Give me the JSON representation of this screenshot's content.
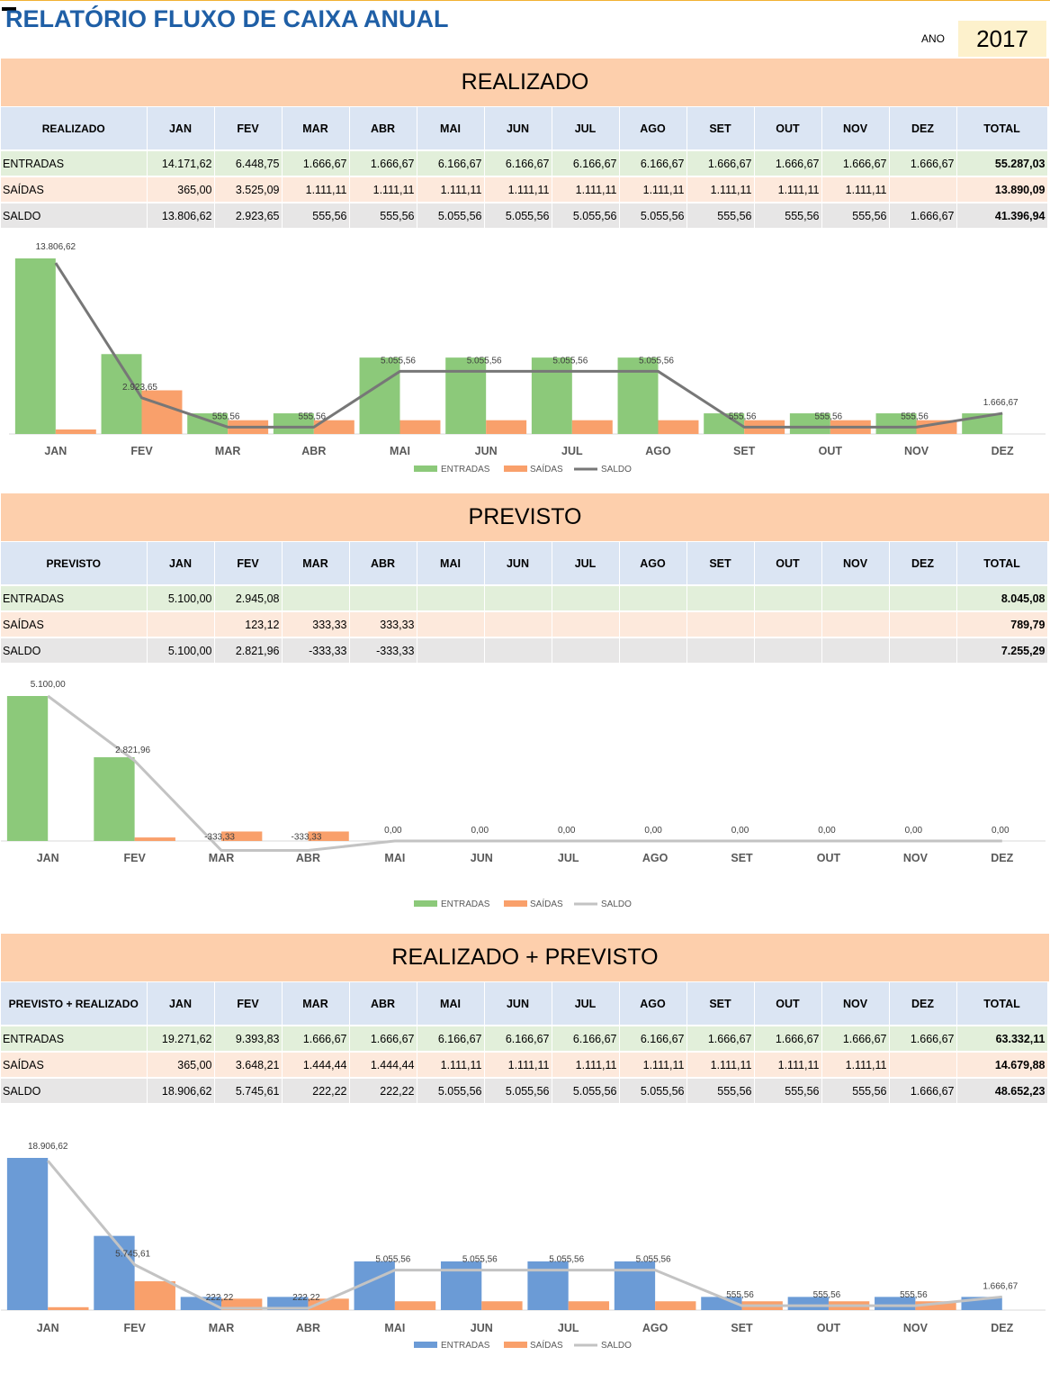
{
  "header": {
    "title": "RELATÓRIO FLUXO DE CAIXA ANUAL",
    "ano_label": "ANO",
    "ano_value": "2017"
  },
  "months": [
    "JAN",
    "FEV",
    "MAR",
    "ABR",
    "MAI",
    "JUN",
    "JUL",
    "AGO",
    "SET",
    "OUT",
    "NOV",
    "DEZ"
  ],
  "total_label": "TOTAL",
  "row_labels": {
    "in": "ENTRADAS",
    "out": "SAÍDAS",
    "bal": "SALDO"
  },
  "colors": {
    "green": "#8cc97a",
    "orange": "#f9a06b",
    "blue": "#6b9bd6",
    "line_dark": "#777777",
    "line_light": "#c3c3c3",
    "band": "#fdcfac"
  },
  "realizado": {
    "band": "REALIZADO",
    "header_label": "REALIZADO",
    "entradas": [
      "14.171,62",
      "6.448,75",
      "1.666,67",
      "1.666,67",
      "6.166,67",
      "6.166,67",
      "6.166,67",
      "6.166,67",
      "1.666,67",
      "1.666,67",
      "1.666,67",
      "1.666,67",
      "55.287,03"
    ],
    "saidas": [
      "365,00",
      "3.525,09",
      "1.111,11",
      "1.111,11",
      "1.111,11",
      "1.111,11",
      "1.111,11",
      "1.111,11",
      "1.111,11",
      "1.111,11",
      "1.111,11",
      "",
      "13.890,09"
    ],
    "saldo": [
      "13.806,62",
      "2.923,65",
      "555,56",
      "555,56",
      "5.055,56",
      "5.055,56",
      "5.055,56",
      "5.055,56",
      "555,56",
      "555,56",
      "555,56",
      "1.666,67",
      "41.396,94"
    ]
  },
  "previsto": {
    "band": "PREVISTO",
    "header_label": "PREVISTO",
    "entradas": [
      "5.100,00",
      "2.945,08",
      "",
      "",
      "",
      "",
      "",
      "",
      "",
      "",
      "",
      "",
      "8.045,08"
    ],
    "saidas": [
      "",
      "123,12",
      "333,33",
      "333,33",
      "",
      "",
      "",
      "",
      "",
      "",
      "",
      "",
      "789,79"
    ],
    "saldo": [
      "5.100,00",
      "2.821,96",
      "-333,33",
      "-333,33",
      "",
      "",
      "",
      "",
      "",
      "",
      "",
      "",
      "7.255,29"
    ]
  },
  "combinado": {
    "band": "REALIZADO + PREVISTO",
    "header_label": "PREVISTO + REALIZADO",
    "entradas": [
      "19.271,62",
      "9.393,83",
      "1.666,67",
      "1.666,67",
      "6.166,67",
      "6.166,67",
      "6.166,67",
      "6.166,67",
      "1.666,67",
      "1.666,67",
      "1.666,67",
      "1.666,67",
      "63.332,11"
    ],
    "saidas": [
      "365,00",
      "3.648,21",
      "1.444,44",
      "1.444,44",
      "1.111,11",
      "1.111,11",
      "1.111,11",
      "1.111,11",
      "1.111,11",
      "1.111,11",
      "1.111,11",
      "",
      "14.679,88"
    ],
    "saldo": [
      "18.906,62",
      "5.745,61",
      "222,22",
      "222,22",
      "5.055,56",
      "5.055,56",
      "5.055,56",
      "5.055,56",
      "555,56",
      "555,56",
      "555,56",
      "1.666,67",
      "48.652,23"
    ]
  },
  "chart_data": [
    {
      "type": "bar",
      "categories": [
        "JAN",
        "FEV",
        "MAR",
        "ABR",
        "MAI",
        "JUN",
        "JUL",
        "AGO",
        "SET",
        "OUT",
        "NOV",
        "DEZ"
      ],
      "series": [
        {
          "name": "ENTRADAS",
          "kind": "bar",
          "values": [
            14171.62,
            6448.75,
            1666.67,
            1666.67,
            6166.67,
            6166.67,
            6166.67,
            6166.67,
            1666.67,
            1666.67,
            1666.67,
            1666.67
          ]
        },
        {
          "name": "SAÍDAS",
          "kind": "bar",
          "values": [
            365,
            3525.09,
            1111.11,
            1111.11,
            1111.11,
            1111.11,
            1111.11,
            1111.11,
            1111.11,
            1111.11,
            1111.11,
            0
          ]
        },
        {
          "name": "SALDO",
          "kind": "line",
          "values": [
            13806.62,
            2923.65,
            555.56,
            555.56,
            5055.56,
            5055.56,
            5055.56,
            5055.56,
            555.56,
            555.56,
            555.56,
            1666.67
          ]
        }
      ],
      "data_labels": [
        "13.806,62",
        "2.923,65",
        "555,56",
        "555,56",
        "5.055,56",
        "5.055,56",
        "5.055,56",
        "5.055,56",
        "555,56",
        "555,56",
        "555,56",
        "1.666,67"
      ],
      "legend": "bottom",
      "line_color": "#777777",
      "entradas_color": "#8cc97a"
    },
    {
      "type": "bar",
      "categories": [
        "JAN",
        "FEV",
        "MAR",
        "ABR",
        "MAI",
        "JUN",
        "JUL",
        "AGO",
        "SET",
        "OUT",
        "NOV",
        "DEZ"
      ],
      "series": [
        {
          "name": "ENTRADAS",
          "kind": "bar",
          "values": [
            5100,
            2945.08,
            0,
            0,
            0,
            0,
            0,
            0,
            0,
            0,
            0,
            0
          ]
        },
        {
          "name": "SAÍDAS",
          "kind": "bar",
          "values": [
            0,
            123.12,
            333.33,
            333.33,
            0,
            0,
            0,
            0,
            0,
            0,
            0,
            0
          ]
        },
        {
          "name": "SALDO",
          "kind": "line",
          "values": [
            5100,
            2821.96,
            -333.33,
            -333.33,
            0,
            0,
            0,
            0,
            0,
            0,
            0,
            0
          ]
        }
      ],
      "data_labels": [
        "5.100,00",
        "2.821,96",
        "-333,33",
        "-333,33",
        "0,00",
        "0,00",
        "0,00",
        "0,00",
        "0,00",
        "0,00",
        "0,00",
        "0,00"
      ],
      "legend": "bottom",
      "line_color": "#c3c3c3",
      "entradas_color": "#8cc97a"
    },
    {
      "type": "bar",
      "categories": [
        "JAN",
        "FEV",
        "MAR",
        "ABR",
        "MAI",
        "JUN",
        "JUL",
        "AGO",
        "SET",
        "OUT",
        "NOV",
        "DEZ"
      ],
      "series": [
        {
          "name": "ENTRADAS",
          "kind": "bar",
          "values": [
            19271.62,
            9393.83,
            1666.67,
            1666.67,
            6166.67,
            6166.67,
            6166.67,
            6166.67,
            1666.67,
            1666.67,
            1666.67,
            1666.67
          ]
        },
        {
          "name": "SAÍDAS",
          "kind": "bar",
          "values": [
            365,
            3648.21,
            1444.44,
            1444.44,
            1111.11,
            1111.11,
            1111.11,
            1111.11,
            1111.11,
            1111.11,
            1111.11,
            0
          ]
        },
        {
          "name": "SALDO",
          "kind": "line",
          "values": [
            18906.62,
            5745.61,
            222.22,
            222.22,
            5055.56,
            5055.56,
            5055.56,
            5055.56,
            555.56,
            555.56,
            555.56,
            1666.67
          ]
        }
      ],
      "data_labels": [
        "18.906,62",
        "5.745,61",
        "222,22",
        "222,22",
        "5.055,56",
        "5.055,56",
        "5.055,56",
        "5.055,56",
        "555,56",
        "555,56",
        "555,56",
        "1.666,67"
      ],
      "legend": "bottom",
      "line_color": "#c3c3c3",
      "entradas_color": "#6b9bd6"
    }
  ]
}
